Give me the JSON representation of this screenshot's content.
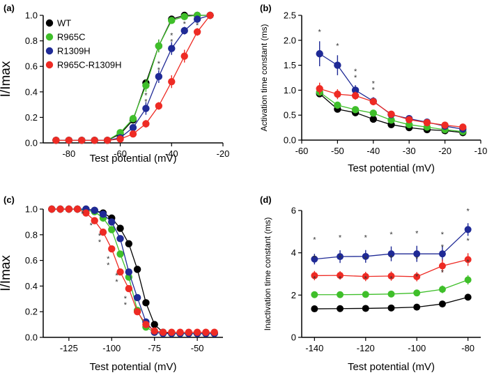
{
  "figure": {
    "series_names": [
      "WT",
      "R965C",
      "R1309H",
      "R965C-R1309H"
    ]
  },
  "colors": {
    "WT": "#000000",
    "R965C": "#3fbf2a",
    "R1309H": "#1f2a96",
    "R965C-R1309H": "#ee2b24"
  },
  "legend": [
    "WT",
    "R965C",
    "R1309H",
    "R965C-R1309H"
  ],
  "chart_data": [
    {
      "panel": "(a)",
      "type": "line",
      "xlabel": "Test potential (mV)",
      "ylabel": "I/Imax",
      "xlim": [
        -90,
        -20
      ],
      "ylim": [
        0,
        1.0
      ],
      "xticks": [
        -80,
        -60,
        -40,
        -20
      ],
      "yticks": [
        0.0,
        0.2,
        0.4,
        0.6,
        0.8,
        1.0
      ],
      "x": [
        -85,
        -80,
        -75,
        -70,
        -65,
        -60,
        -55,
        -50,
        -45,
        -40,
        -35,
        -30,
        -25
      ],
      "series": [
        {
          "name": "WT",
          "values": [
            0.02,
            0.02,
            0.02,
            0.02,
            0.02,
            0.07,
            0.18,
            0.47,
            0.76,
            0.97,
            1.0,
            1.0,
            1.0
          ]
        },
        {
          "name": "R965C",
          "values": [
            0.02,
            0.02,
            0.02,
            0.02,
            0.02,
            0.08,
            0.19,
            0.45,
            0.76,
            0.96,
            0.99,
            1.0,
            1.0
          ]
        },
        {
          "name": "R1309H",
          "values": [
            0.02,
            0.02,
            0.02,
            0.02,
            0.02,
            0.04,
            0.12,
            0.27,
            0.52,
            0.74,
            0.88,
            0.97,
            1.0
          ]
        },
        {
          "name": "R965C-R1309H",
          "values": [
            0.02,
            0.02,
            0.02,
            0.02,
            0.02,
            0.03,
            0.07,
            0.15,
            0.29,
            0.48,
            0.68,
            0.87,
            1.0
          ]
        }
      ],
      "error_bars": [
        {
          "name": "WT",
          "values": [
            0,
            0,
            0,
            0,
            0,
            0,
            0.02,
            0.03,
            0.05,
            0.02,
            0,
            0,
            0
          ]
        },
        {
          "name": "R965C",
          "values": [
            0,
            0,
            0,
            0,
            0,
            0.02,
            0.03,
            0.05,
            0.05,
            0.02,
            0,
            0,
            0
          ]
        },
        {
          "name": "R1309H",
          "values": [
            0,
            0,
            0,
            0,
            0,
            0,
            0.02,
            0.05,
            0.05,
            0.05,
            0.03,
            0,
            0
          ]
        },
        {
          "name": "R965C-R1309H",
          "values": [
            0,
            0,
            0,
            0,
            0,
            0,
            0.02,
            0.03,
            0.03,
            0.05,
            0.05,
            0.03,
            0
          ]
        }
      ],
      "significance": [
        {
          "x": -50,
          "y": 0.27,
          "marks": "* *"
        },
        {
          "x": -45,
          "y": 0.52,
          "marks": "* *"
        },
        {
          "x": -40,
          "y": 0.74,
          "marks": "* *"
        },
        {
          "x": -35,
          "y": 0.88,
          "marks": "*"
        },
        {
          "x": -30,
          "y": 0.87,
          "marks": "*"
        }
      ],
      "legend_position": "top-left"
    },
    {
      "panel": "(b)",
      "type": "line",
      "xlabel": "Test potential (mV)",
      "ylabel": "Activation time constant (ms)",
      "xlim": [
        -60,
        -10
      ],
      "ylim": [
        0,
        2.5
      ],
      "xticks": [
        -60,
        -50,
        -40,
        -30,
        -20,
        -10
      ],
      "yticks": [
        0.0,
        0.5,
        1.0,
        1.5,
        2.0,
        2.5
      ],
      "x": [
        -55,
        -50,
        -45,
        -40,
        -35,
        -30,
        -25,
        -20,
        -15
      ],
      "series": [
        {
          "name": "WT",
          "values": [
            0.93,
            0.62,
            0.55,
            0.42,
            0.31,
            0.25,
            0.21,
            0.19,
            0.15
          ]
        },
        {
          "name": "R965C",
          "values": [
            0.96,
            0.7,
            0.61,
            0.54,
            0.4,
            0.31,
            0.26,
            0.21,
            0.17
          ]
        },
        {
          "name": "R1309H",
          "values": [
            1.73,
            1.5,
            1.0,
            0.78,
            0.51,
            0.43,
            0.36,
            0.28,
            0.22
          ]
        },
        {
          "name": "R965C-R1309H",
          "values": [
            1.03,
            0.92,
            0.89,
            0.77,
            0.52,
            0.41,
            0.35,
            0.3,
            0.26
          ]
        }
      ],
      "error_bars": [
        {
          "name": "WT",
          "values": [
            0.05,
            0.04,
            0.03,
            0.03,
            0.02,
            0.02,
            0.02,
            0.01,
            0.01
          ]
        },
        {
          "name": "R965C",
          "values": [
            0.05,
            0.04,
            0.03,
            0.03,
            0.02,
            0.02,
            0.02,
            0.01,
            0.01
          ]
        },
        {
          "name": "R1309H",
          "values": [
            0.25,
            0.2,
            0.1,
            0.08,
            0.05,
            0.03,
            0.03,
            0.02,
            0.02
          ]
        },
        {
          "name": "R965C-R1309H",
          "values": [
            0.12,
            0.1,
            0.08,
            0.07,
            0.05,
            0.03,
            0.03,
            0.02,
            0.02
          ]
        }
      ],
      "significance": [
        {
          "x": -55,
          "y": 2.03,
          "marks": "*"
        },
        {
          "x": -50,
          "y": 1.75,
          "marks": "*"
        },
        {
          "x": -45,
          "y": 1.12,
          "marks": "* *"
        },
        {
          "x": -40,
          "y": 0.87,
          "marks": "* *"
        }
      ]
    },
    {
      "panel": "(c)",
      "type": "line",
      "xlabel": "Test potential (mV)",
      "ylabel": "I/Imax",
      "xlim": [
        -140,
        -35
      ],
      "ylim": [
        0,
        1.0
      ],
      "xticks": [
        -125,
        -100,
        -75,
        -50
      ],
      "yticks": [
        0.0,
        0.2,
        0.4,
        0.6,
        0.8,
        1.0
      ],
      "x": [
        -135,
        -130,
        -125,
        -120,
        -115,
        -110,
        -105,
        -100,
        -95,
        -90,
        -85,
        -80,
        -75,
        -70,
        -65,
        -60,
        -55,
        -50,
        -45,
        -40
      ],
      "series": [
        {
          "name": "WT",
          "values": [
            1.0,
            1.0,
            1.0,
            1.0,
            1.0,
            0.99,
            0.97,
            0.93,
            0.85,
            0.73,
            0.53,
            0.27,
            0.1,
            0.04,
            0.03,
            0.03,
            0.03,
            0.03,
            0.03,
            0.03
          ]
        },
        {
          "name": "R965C",
          "values": [
            1.0,
            1.0,
            1.0,
            1.0,
            0.99,
            0.98,
            0.93,
            0.84,
            0.65,
            0.47,
            0.21,
            0.08,
            0.04,
            0.03,
            0.03,
            0.03,
            0.03,
            0.03,
            0.03,
            0.03
          ]
        },
        {
          "name": "R1309H",
          "values": [
            1.0,
            1.0,
            1.0,
            1.0,
            1.0,
            0.99,
            0.96,
            0.9,
            0.77,
            0.51,
            0.31,
            0.12,
            0.04,
            0.03,
            0.03,
            0.03,
            0.03,
            0.03,
            0.03,
            0.03
          ]
        },
        {
          "name": "R965C-R1309H",
          "values": [
            1.0,
            1.0,
            1.0,
            1.0,
            0.97,
            0.91,
            0.82,
            0.69,
            0.51,
            0.38,
            0.2,
            0.1,
            0.05,
            0.04,
            0.04,
            0.04,
            0.04,
            0.04,
            0.04,
            0.04
          ]
        }
      ],
      "significance": [
        {
          "x": -115,
          "y": 0.91,
          "marks": "*"
        },
        {
          "x": -110,
          "y": 0.82,
          "marks": "*"
        },
        {
          "x": -105,
          "y": 0.69,
          "marks": "* *"
        },
        {
          "x": -100,
          "y": 0.51,
          "marks": "* *"
        },
        {
          "x": -95,
          "y": 0.38,
          "marks": "* *"
        },
        {
          "x": -90,
          "y": 0.2,
          "marks": "* *"
        }
      ]
    },
    {
      "panel": "(d)",
      "type": "line",
      "xlabel": "Test potential (mV)",
      "ylabel": "Inactivation time constant (ms)",
      "xlim": [
        -145,
        -75
      ],
      "ylim": [
        0,
        6
      ],
      "xticks": [
        -140,
        -120,
        -100,
        -80
      ],
      "yticks": [
        0,
        2,
        4,
        6
      ],
      "x": [
        -140,
        -130,
        -120,
        -110,
        -100,
        -90,
        -80
      ],
      "series": [
        {
          "name": "WT",
          "values": [
            1.35,
            1.36,
            1.37,
            1.39,
            1.43,
            1.58,
            1.9
          ]
        },
        {
          "name": "R965C",
          "values": [
            2.02,
            2.02,
            2.03,
            2.05,
            2.1,
            2.27,
            2.72
          ]
        },
        {
          "name": "R1309H",
          "values": [
            3.7,
            3.82,
            3.83,
            3.95,
            3.95,
            3.95,
            5.1
          ]
        },
        {
          "name": "R965C-R1309H",
          "values": [
            2.92,
            2.93,
            2.88,
            2.9,
            2.87,
            3.38,
            3.68
          ]
        }
      ],
      "error_bars": [
        {
          "name": "WT",
          "values": [
            0.05,
            0.05,
            0.05,
            0.05,
            0.05,
            0.06,
            0.08
          ]
        },
        {
          "name": "R965C",
          "values": [
            0.1,
            0.1,
            0.1,
            0.1,
            0.12,
            0.18,
            0.22
          ]
        },
        {
          "name": "R1309H",
          "values": [
            0.25,
            0.3,
            0.3,
            0.35,
            0.38,
            0.35,
            0.3
          ]
        },
        {
          "name": "R965C-R1309H",
          "values": [
            0.22,
            0.2,
            0.22,
            0.22,
            0.22,
            0.3,
            0.3
          ]
        }
      ],
      "significance": [
        {
          "x": -140,
          "y": 4.3,
          "marks": "*"
        },
        {
          "x": -130,
          "y": 4.4,
          "marks": "*"
        },
        {
          "x": -120,
          "y": 4.4,
          "marks": "*"
        },
        {
          "x": -110,
          "y": 4.55,
          "marks": "*"
        },
        {
          "x": -100,
          "y": 4.6,
          "marks": "*"
        },
        {
          "x": -90,
          "y": 4.55,
          "marks": "*"
        },
        {
          "x": -80,
          "y": 5.65,
          "marks": "*"
        },
        {
          "x": -140,
          "y": 3.45,
          "marks": "*"
        },
        {
          "x": -130,
          "y": 3.45,
          "marks": "*"
        },
        {
          "x": -120,
          "y": 3.4,
          "marks": "*"
        },
        {
          "x": -110,
          "y": 3.45,
          "marks": "*"
        },
        {
          "x": -100,
          "y": 3.4,
          "marks": "*"
        },
        {
          "x": -90,
          "y": 3.95,
          "marks": "*"
        },
        {
          "x": -80,
          "y": 4.25,
          "marks": "*"
        },
        {
          "x": -140,
          "y": 2.45,
          "marks": "*"
        },
        {
          "x": -130,
          "y": 2.45,
          "marks": "*"
        },
        {
          "x": -120,
          "y": 2.45,
          "marks": "*"
        },
        {
          "x": -110,
          "y": 2.45,
          "marks": "*"
        },
        {
          "x": -100,
          "y": 2.55,
          "marks": "*"
        },
        {
          "x": -90,
          "y": 2.75,
          "marks": "*"
        },
        {
          "x": -80,
          "y": 3.25,
          "marks": "*"
        }
      ]
    }
  ]
}
